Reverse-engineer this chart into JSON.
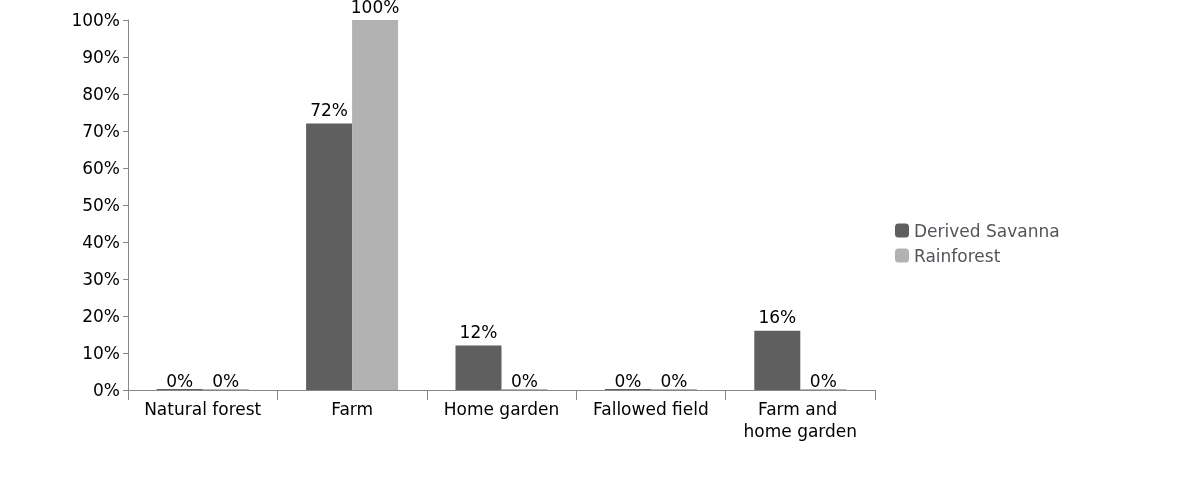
{
  "chart_data": {
    "type": "bar",
    "categories": [
      "Natural forest",
      "Farm",
      "Home garden",
      "Fallowed field",
      "Farm and home garden"
    ],
    "series": [
      {
        "name": "Derived Savanna",
        "color": "#5f5f5f",
        "values": [
          0,
          72,
          12,
          0,
          16
        ],
        "value_labels": [
          "0%",
          "72%",
          "12%",
          "0%",
          "16%"
        ]
      },
      {
        "name": "Rainforest",
        "color": "#b2b2b2",
        "values": [
          0,
          100,
          0,
          0,
          0
        ],
        "value_labels": [
          "0%",
          "100%",
          "0%",
          "0%",
          "0%"
        ]
      }
    ],
    "ylim": [
      0,
      100
    ],
    "yticks": [
      {
        "value": 0,
        "label": "0%"
      },
      {
        "value": 10,
        "label": "10%"
      },
      {
        "value": 20,
        "label": "20%"
      },
      {
        "value": 30,
        "label": "30%"
      },
      {
        "value": 40,
        "label": "40%"
      },
      {
        "value": 50,
        "label": "50%"
      },
      {
        "value": 60,
        "label": "60%"
      },
      {
        "value": 70,
        "label": "70%"
      },
      {
        "value": 80,
        "label": "80%"
      },
      {
        "value": 90,
        "label": "90%"
      },
      {
        "value": 100,
        "label": "100%"
      }
    ],
    "grid": false,
    "legend": "right"
  }
}
